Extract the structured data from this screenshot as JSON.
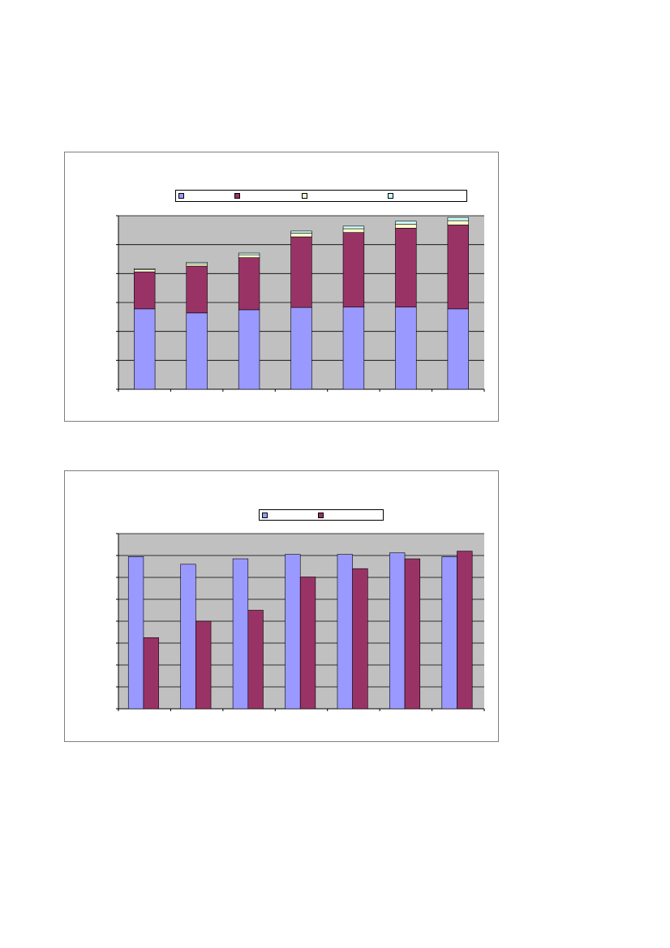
{
  "colors": {
    "plot_bg": "#c0c0c0",
    "gridline": "#000000",
    "series1": "#9999ff",
    "series2": "#993366",
    "series3": "#ffffcc",
    "series4": "#ccffff"
  },
  "chart_data": [
    {
      "type": "bar",
      "stacked": true,
      "title": "",
      "xlabel": "",
      "ylabel": "",
      "ylim": [
        0,
        6
      ],
      "grid": true,
      "legend": "top",
      "categories": [
        "",
        "",
        "",
        "",
        "",
        "",
        ""
      ],
      "series": [
        {
          "name": "",
          "color": "#9999ff",
          "values": [
            2.78,
            2.64,
            2.75,
            2.83,
            2.84,
            2.84,
            2.78
          ]
        },
        {
          "name": "",
          "color": "#993366",
          "values": [
            1.28,
            1.62,
            1.8,
            2.44,
            2.58,
            2.73,
            2.9
          ]
        },
        {
          "name": "",
          "color": "#ffffcc",
          "values": [
            0.07,
            0.08,
            0.1,
            0.13,
            0.13,
            0.14,
            0.15
          ]
        },
        {
          "name": "",
          "color": "#ccffff",
          "values": [
            0.04,
            0.05,
            0.06,
            0.07,
            0.09,
            0.1,
            0.11
          ]
        }
      ]
    },
    {
      "type": "bar",
      "stacked": false,
      "title": "",
      "xlabel": "",
      "ylabel": "",
      "ylim": [
        0,
        8
      ],
      "grid": true,
      "legend": "top",
      "categories": [
        "",
        "",
        "",
        "",
        "",
        "",
        ""
      ],
      "series": [
        {
          "name": "",
          "color": "#9999ff",
          "values": [
            6.95,
            6.6,
            6.85,
            7.05,
            7.05,
            7.12,
            6.95
          ]
        },
        {
          "name": "",
          "color": "#993366",
          "values": [
            3.25,
            4.0,
            4.5,
            6.02,
            6.4,
            6.85,
            7.2
          ]
        }
      ]
    }
  ]
}
